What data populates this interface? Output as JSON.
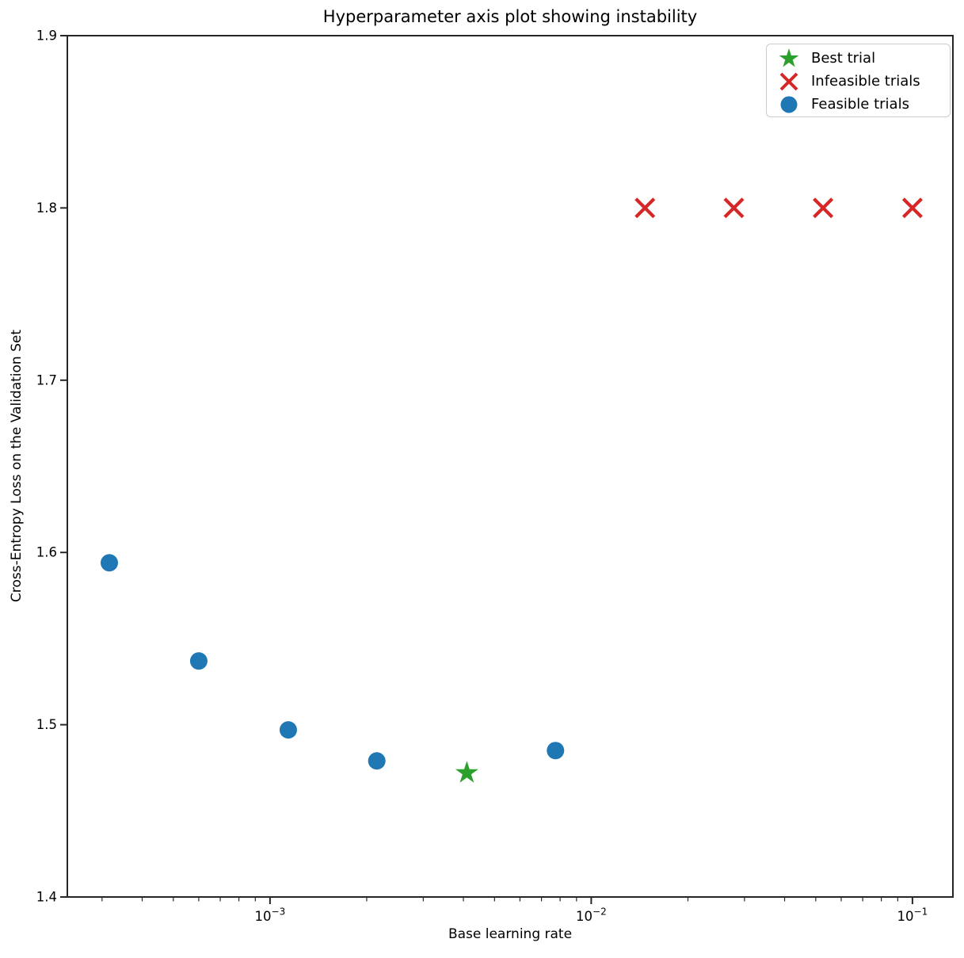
{
  "chart_data": {
    "type": "scatter",
    "title": "Hyperparameter axis plot showing instability",
    "xlabel": "Base learning rate",
    "ylabel": "Cross-Entropy Loss on the Validation Set",
    "x_scale": "log",
    "xlim_log10": [
      -3.631,
      -0.874
    ],
    "ylim": [
      1.4,
      1.9
    ],
    "x_major_ticks_exp": [
      -3,
      -2,
      -1
    ],
    "y_ticks": [
      1.4,
      1.5,
      1.6,
      1.7,
      1.8,
      1.9
    ],
    "grid": false,
    "legend_position": "upper right",
    "frame_color": "#262626",
    "text_color": "#000000",
    "series": [
      {
        "name": "Best trial",
        "marker": "star",
        "color": "#2ca02c",
        "points": [
          {
            "x": 0.0041,
            "y": 1.472
          }
        ]
      },
      {
        "name": "Infeasible trials",
        "marker": "x",
        "color": "#d62728",
        "points": [
          {
            "x": 0.0147,
            "y": 1.8
          },
          {
            "x": 0.0278,
            "y": 1.8
          },
          {
            "x": 0.0527,
            "y": 1.8
          },
          {
            "x": 0.1,
            "y": 1.8
          }
        ]
      },
      {
        "name": "Feasible trials",
        "marker": "circle",
        "color": "#1f77b4",
        "points": [
          {
            "x": 0.000316,
            "y": 1.594
          },
          {
            "x": 0.0006,
            "y": 1.537
          },
          {
            "x": 0.00114,
            "y": 1.497
          },
          {
            "x": 0.00215,
            "y": 1.479
          },
          {
            "x": 0.00774,
            "y": 1.485
          }
        ]
      }
    ]
  }
}
